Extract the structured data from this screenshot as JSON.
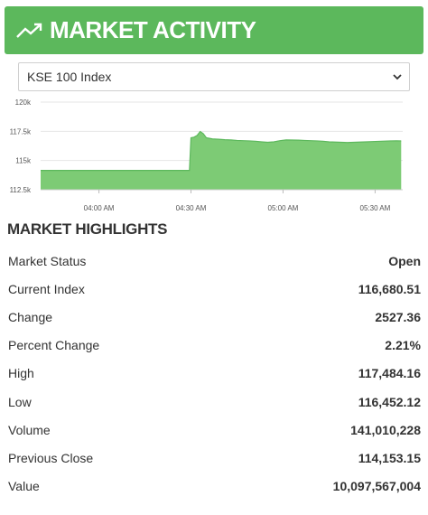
{
  "header": {
    "title": "MARKET ACTIVITY",
    "icon": "trending-up-icon",
    "accent_color": "#5cb85c"
  },
  "index_select": {
    "selected": "KSE 100 Index",
    "icon": "chevron-down-icon"
  },
  "chart_data": {
    "type": "area",
    "color": "#5cb85c",
    "ylim": [
      112500,
      120000
    ],
    "y_ticks": [
      "120k",
      "117.5k",
      "115k",
      "112.5k"
    ],
    "y_tick_values": [
      120000,
      117500,
      115000,
      112500
    ],
    "x_ticks": [
      "04:00 AM",
      "04:30 AM",
      "05:00 AM",
      "05:30 AM"
    ],
    "x_tick_minutes": [
      240,
      270,
      300,
      330
    ],
    "xlim_minutes": [
      221,
      339
    ],
    "grid": true,
    "points": [
      [
        221,
        114153
      ],
      [
        226,
        114153
      ],
      [
        232,
        114153
      ],
      [
        238,
        114153
      ],
      [
        244,
        114153
      ],
      [
        250,
        114153
      ],
      [
        256,
        114153
      ],
      [
        262,
        114153
      ],
      [
        268,
        114153
      ],
      [
        269.5,
        114153
      ],
      [
        270,
        116950
      ],
      [
        271,
        117000
      ],
      [
        272,
        117150
      ],
      [
        273,
        117484
      ],
      [
        274,
        117300
      ],
      [
        275,
        116950
      ],
      [
        277,
        116850
      ],
      [
        279,
        116820
      ],
      [
        281,
        116780
      ],
      [
        283,
        116760
      ],
      [
        285,
        116720
      ],
      [
        287,
        116700
      ],
      [
        289,
        116680
      ],
      [
        291,
        116650
      ],
      [
        293,
        116600
      ],
      [
        295,
        116560
      ],
      [
        297,
        116600
      ],
      [
        299,
        116700
      ],
      [
        301,
        116760
      ],
      [
        303,
        116750
      ],
      [
        305,
        116740
      ],
      [
        307,
        116720
      ],
      [
        309,
        116700
      ],
      [
        311,
        116680
      ],
      [
        313,
        116650
      ],
      [
        315,
        116600
      ],
      [
        317,
        116580
      ],
      [
        319,
        116560
      ],
      [
        321,
        116540
      ],
      [
        323,
        116560
      ],
      [
        325,
        116580
      ],
      [
        327,
        116600
      ],
      [
        329,
        116620
      ],
      [
        331,
        116640
      ],
      [
        333,
        116660
      ],
      [
        335,
        116680
      ],
      [
        337,
        116690
      ],
      [
        338.5,
        116680
      ]
    ]
  },
  "highlights": {
    "title": "MARKET HIGHLIGHTS",
    "rows": [
      {
        "label": "Market Status",
        "value": "Open"
      },
      {
        "label": "Current Index",
        "value": "116,680.51"
      },
      {
        "label": "Change",
        "value": "2527.36"
      },
      {
        "label": "Percent Change",
        "value": "2.21%"
      },
      {
        "label": "High",
        "value": "117,484.16"
      },
      {
        "label": "Low",
        "value": "116,452.12"
      },
      {
        "label": "Volume",
        "value": "141,010,228"
      },
      {
        "label": "Previous Close",
        "value": "114,153.15"
      },
      {
        "label": "Value",
        "value": "10,097,567,004"
      }
    ]
  }
}
